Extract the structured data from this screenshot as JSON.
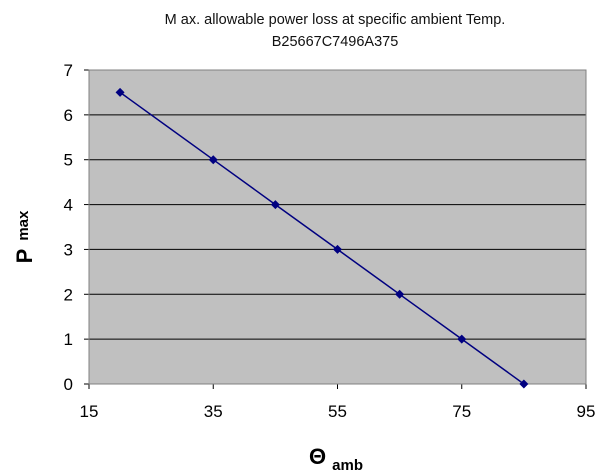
{
  "chart_data": {
    "type": "line",
    "title": "M ax. allowable power loss at specific ambient Temp.",
    "subtitle": "B25667C7496A375",
    "xlabel": "Θ",
    "xlabel_sub": "amb",
    "ylabel": "P",
    "ylabel_sub": "max",
    "xlim": [
      15,
      95
    ],
    "ylim": [
      0,
      7
    ],
    "xticks": [
      "15",
      "35",
      "55",
      "75",
      "95"
    ],
    "yticks": [
      "0",
      "1",
      "2",
      "3",
      "4",
      "5",
      "6",
      "7"
    ],
    "grid": "horizontal",
    "plot_background": "#c0c0c0",
    "series": [
      {
        "color": "#000080",
        "marker": "diamond",
        "x": [
          20,
          35,
          45,
          55,
          65,
          75,
          85
        ],
        "y": [
          6.5,
          5,
          4,
          3,
          2,
          1,
          0
        ]
      }
    ]
  }
}
